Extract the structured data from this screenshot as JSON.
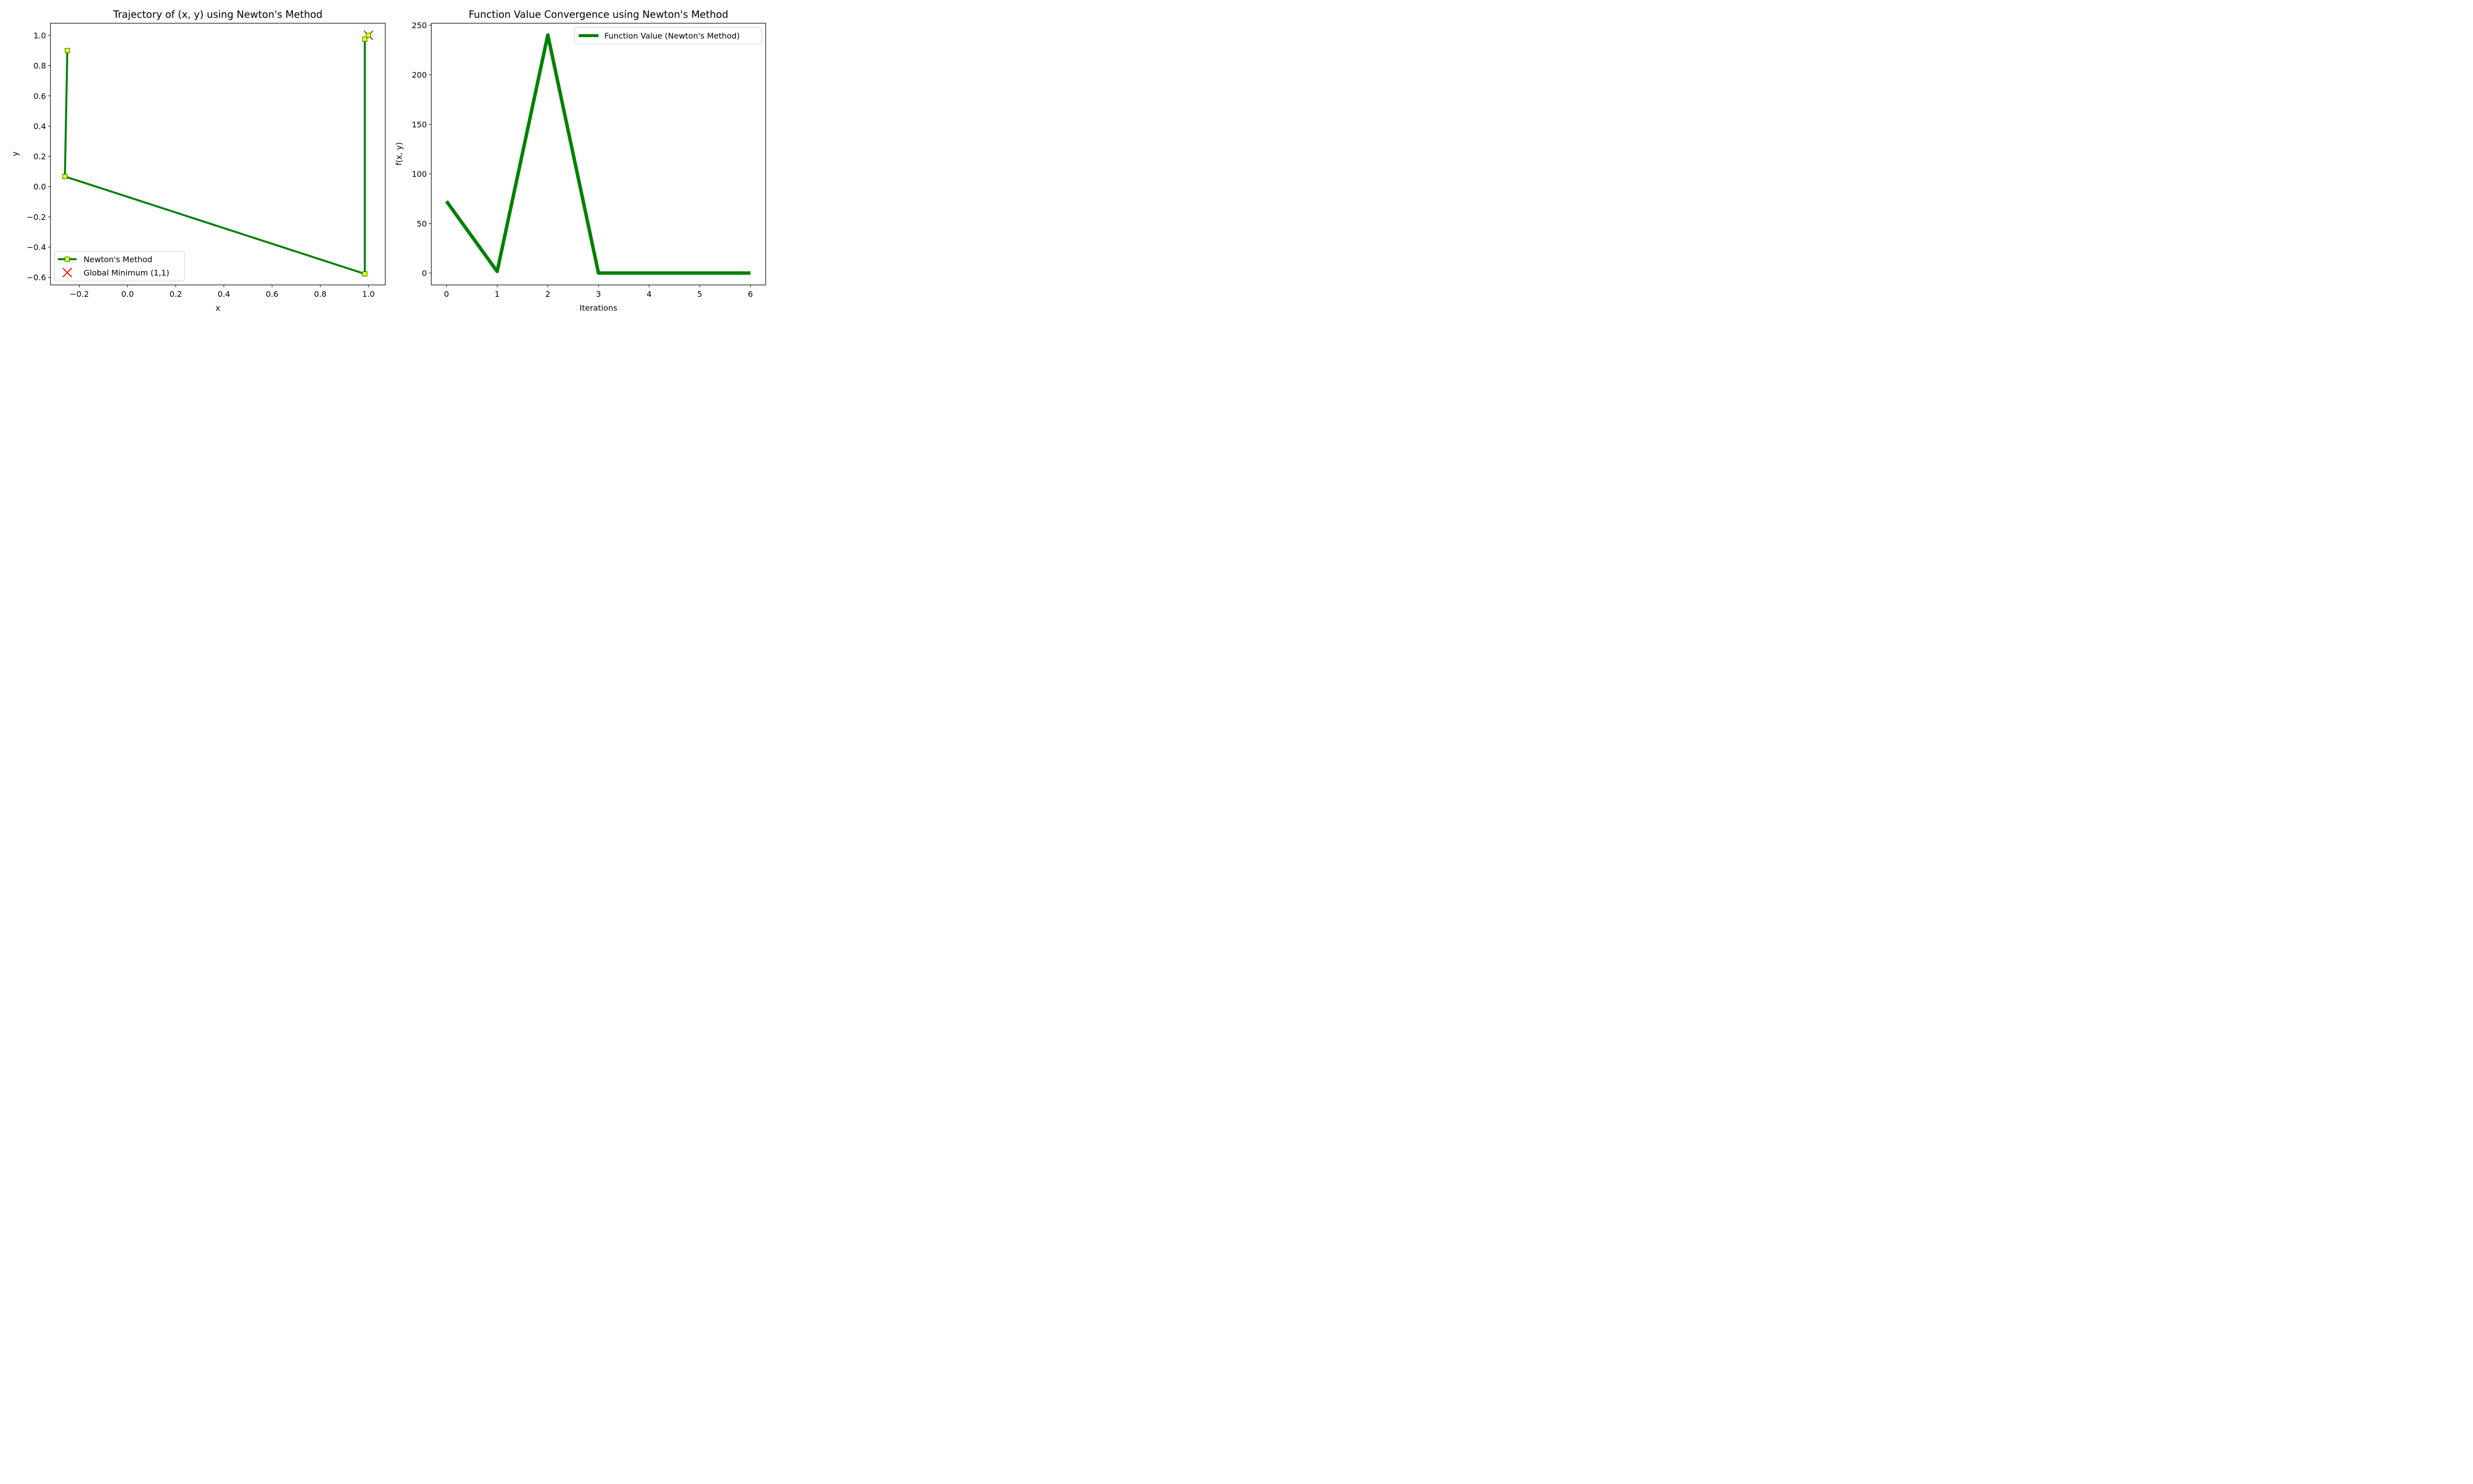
{
  "chart_data": [
    {
      "type": "line",
      "title": "Trajectory of (x, y) using Newton's Method",
      "xlabel": "x",
      "ylabel": "y",
      "xlim": [
        -0.32,
        1.07
      ],
      "ylim": [
        -0.65,
        1.08
      ],
      "xticks": [
        -0.2,
        0.0,
        0.2,
        0.4,
        0.6,
        0.8,
        1.0
      ],
      "xtick_labels": [
        "−0.2",
        "0.0",
        "0.2",
        "0.4",
        "0.6",
        "0.8",
        "1.0"
      ],
      "yticks": [
        -0.6,
        -0.4,
        -0.2,
        0.0,
        0.2,
        0.4,
        0.6,
        0.8,
        1.0
      ],
      "ytick_labels": [
        "−0.6",
        "−0.4",
        "−0.2",
        "0.0",
        "0.2",
        "0.4",
        "0.6",
        "0.8",
        "1.0"
      ],
      "grid": false,
      "legend_position": "lower-left",
      "series": [
        {
          "name": "Newton's Method",
          "color": "#008000",
          "marker": "square",
          "marker_face": "#ffff00",
          "x": [
            -0.25,
            -0.26,
            0.985,
            0.985,
            1.0
          ],
          "y": [
            0.9,
            0.067,
            -0.577,
            0.975,
            1.0
          ]
        }
      ],
      "points": [
        {
          "name": "Global Minimum (1,1)",
          "color": "#ff0000",
          "marker": "x",
          "x": 1.0,
          "y": 1.0
        }
      ]
    },
    {
      "type": "line",
      "title": "Function Value Convergence using Newton's Method",
      "xlabel": "Iterations",
      "ylabel": "f(x, y)",
      "xlim": [
        -0.3,
        6.3
      ],
      "ylim": [
        -12,
        252
      ],
      "xticks": [
        0,
        1,
        2,
        3,
        4,
        5,
        6
      ],
      "xtick_labels": [
        "0",
        "1",
        "2",
        "3",
        "4",
        "5",
        "6"
      ],
      "yticks": [
        0,
        50,
        100,
        150,
        200,
        250
      ],
      "ytick_labels": [
        "0",
        "50",
        "100",
        "150",
        "200",
        "250"
      ],
      "grid": false,
      "legend_position": "top-right",
      "series": [
        {
          "name": "Function Value (Newton's Method)",
          "color": "#008000",
          "x": [
            0,
            1,
            2,
            3,
            4,
            5,
            6
          ],
          "y": [
            72.4,
            1.6,
            240.2,
            0.0,
            0.0,
            0.0,
            0.0
          ]
        }
      ]
    }
  ]
}
